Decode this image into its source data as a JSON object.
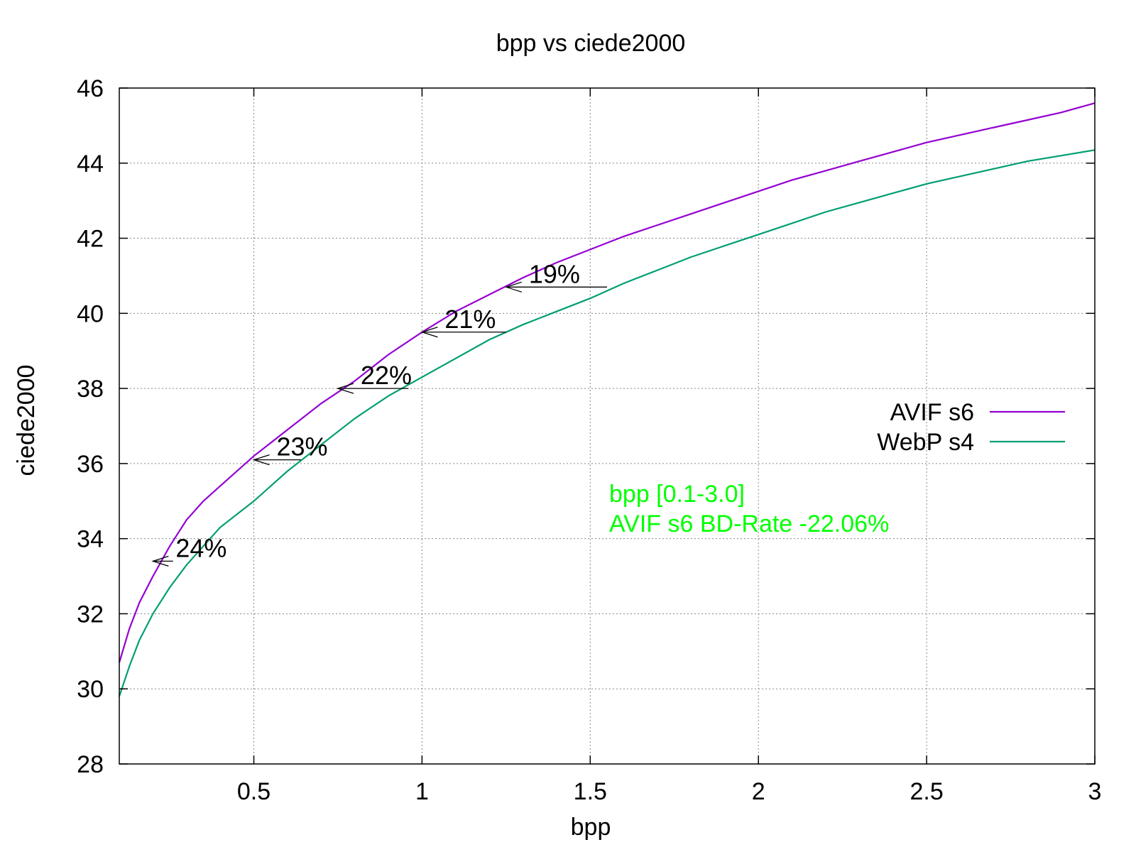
{
  "chart_data": {
    "type": "line",
    "title": "bpp vs ciede2000",
    "xlabel": "bpp",
    "ylabel": "ciede2000",
    "xlim": [
      0.1,
      3.0
    ],
    "ylim": [
      28,
      46
    ],
    "xticks": [
      0.5,
      1,
      1.5,
      2,
      2.5,
      3
    ],
    "xtick_labels": [
      "0.5",
      "1",
      "1.5",
      "2",
      "2.5",
      "3"
    ],
    "yticks": [
      28,
      30,
      32,
      34,
      36,
      38,
      40,
      42,
      44,
      46
    ],
    "ytick_labels": [
      "28",
      "30",
      "32",
      "34",
      "36",
      "38",
      "40",
      "42",
      "44",
      "46"
    ],
    "grid": true,
    "legend_position": "right",
    "series": [
      {
        "name": "AVIF s6",
        "color": "#9400d3",
        "x": [
          0.1,
          0.13,
          0.16,
          0.2,
          0.25,
          0.3,
          0.35,
          0.4,
          0.5,
          0.6,
          0.7,
          0.8,
          0.9,
          1.0,
          1.1,
          1.2,
          1.3,
          1.4,
          1.5,
          1.6,
          1.7,
          1.8,
          1.9,
          2.0,
          2.1,
          2.2,
          2.3,
          2.4,
          2.5,
          2.6,
          2.7,
          2.8,
          2.9,
          3.0
        ],
        "values": [
          30.7,
          31.6,
          32.3,
          33.0,
          33.8,
          34.5,
          35.0,
          35.4,
          36.2,
          36.9,
          37.6,
          38.2,
          38.9,
          39.5,
          40.05,
          40.5,
          40.95,
          41.35,
          41.7,
          42.05,
          42.35,
          42.65,
          42.95,
          43.25,
          43.55,
          43.8,
          44.05,
          44.3,
          44.55,
          44.75,
          44.95,
          45.15,
          45.35,
          45.6
        ]
      },
      {
        "name": "WebP s4",
        "color": "#009e73",
        "x": [
          0.1,
          0.13,
          0.16,
          0.2,
          0.25,
          0.3,
          0.35,
          0.4,
          0.5,
          0.6,
          0.7,
          0.8,
          0.9,
          1.0,
          1.1,
          1.2,
          1.3,
          1.4,
          1.5,
          1.6,
          1.7,
          1.8,
          1.9,
          2.0,
          2.1,
          2.2,
          2.3,
          2.4,
          2.5,
          2.6,
          2.7,
          2.8,
          2.9,
          3.0
        ],
        "values": [
          29.8,
          30.6,
          31.3,
          32.0,
          32.7,
          33.3,
          33.8,
          34.3,
          35.0,
          35.8,
          36.5,
          37.2,
          37.8,
          38.3,
          38.8,
          39.3,
          39.7,
          40.05,
          40.4,
          40.8,
          41.15,
          41.5,
          41.8,
          42.1,
          42.4,
          42.7,
          42.95,
          43.2,
          43.45,
          43.65,
          43.85,
          44.05,
          44.2,
          44.35
        ]
      }
    ],
    "annotations": [
      {
        "text": "24%",
        "x_start": 0.26,
        "x_end": 0.2,
        "y": 33.4
      },
      {
        "text": "23%",
        "x_start": 0.64,
        "x_end": 0.5,
        "y": 36.1
      },
      {
        "text": "22%",
        "x_start": 0.96,
        "x_end": 0.75,
        "y": 38.0
      },
      {
        "text": "21%",
        "x_start": 1.25,
        "x_end": 1.0,
        "y": 39.5
      },
      {
        "text": "19%",
        "x_start": 1.55,
        "x_end": 1.25,
        "y": 40.7
      }
    ],
    "info_text": {
      "color": "#00ff00",
      "lines": [
        "bpp [0.1-3.0]",
        "AVIF s6 BD-Rate -22.06%"
      ]
    }
  }
}
